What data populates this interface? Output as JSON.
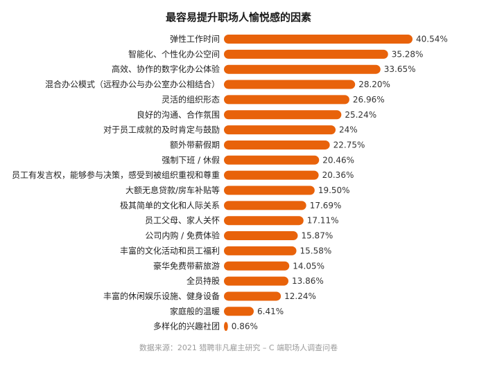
{
  "chart_data": {
    "type": "bar",
    "orientation": "horizontal",
    "title": "最容易提升职场人愉悦感的因素",
    "categories": [
      "弹性工作时间",
      "智能化、个性化办公空间",
      "高效、协作的数字化办公体验",
      "混合办公模式（远程办公与办公室办公相结合）",
      "灵活的组织形态",
      "良好的沟通、合作氛围",
      "对于员工成就的及时肯定与鼓励",
      "额外带薪假期",
      "强制下班 / 休假",
      "员工有发言权，能够参与决策，感受到被组织重视和尊重",
      "大额无息贷款/房车补贴等",
      "极其简单的文化和人际关系",
      "员工父母、家人关怀",
      "公司内购 / 免费体验",
      "丰富的文化活动和员工福利",
      "豪华免费带薪旅游",
      "全员持股",
      "丰富的休闲娱乐设施、健身设备",
      "家庭般的温暖",
      "多样化的兴趣社团"
    ],
    "values": [
      40.54,
      35.28,
      33.65,
      28.2,
      26.96,
      25.24,
      24,
      22.75,
      20.46,
      20.36,
      19.5,
      17.69,
      17.11,
      15.87,
      15.58,
      14.05,
      13.86,
      12.24,
      6.41,
      0.86
    ],
    "value_labels": [
      "40.54%",
      "35.28%",
      "33.65%",
      "28.20%",
      "26.96%",
      "25.24%",
      "24%",
      "22.75%",
      "20.46%",
      "20.36%",
      "19.50%",
      "17.69%",
      "17.11%",
      "15.87%",
      "15.58%",
      "14.05%",
      "13.86%",
      "12.24%",
      "6.41%",
      "0.86%"
    ],
    "xlim": [
      0,
      40.54
    ],
    "grid": false,
    "colors": {
      "bar": "#e8620a"
    },
    "source": "数据来源：2021 猎聘非凡雇主研究 – C 端职场人调查问卷"
  }
}
